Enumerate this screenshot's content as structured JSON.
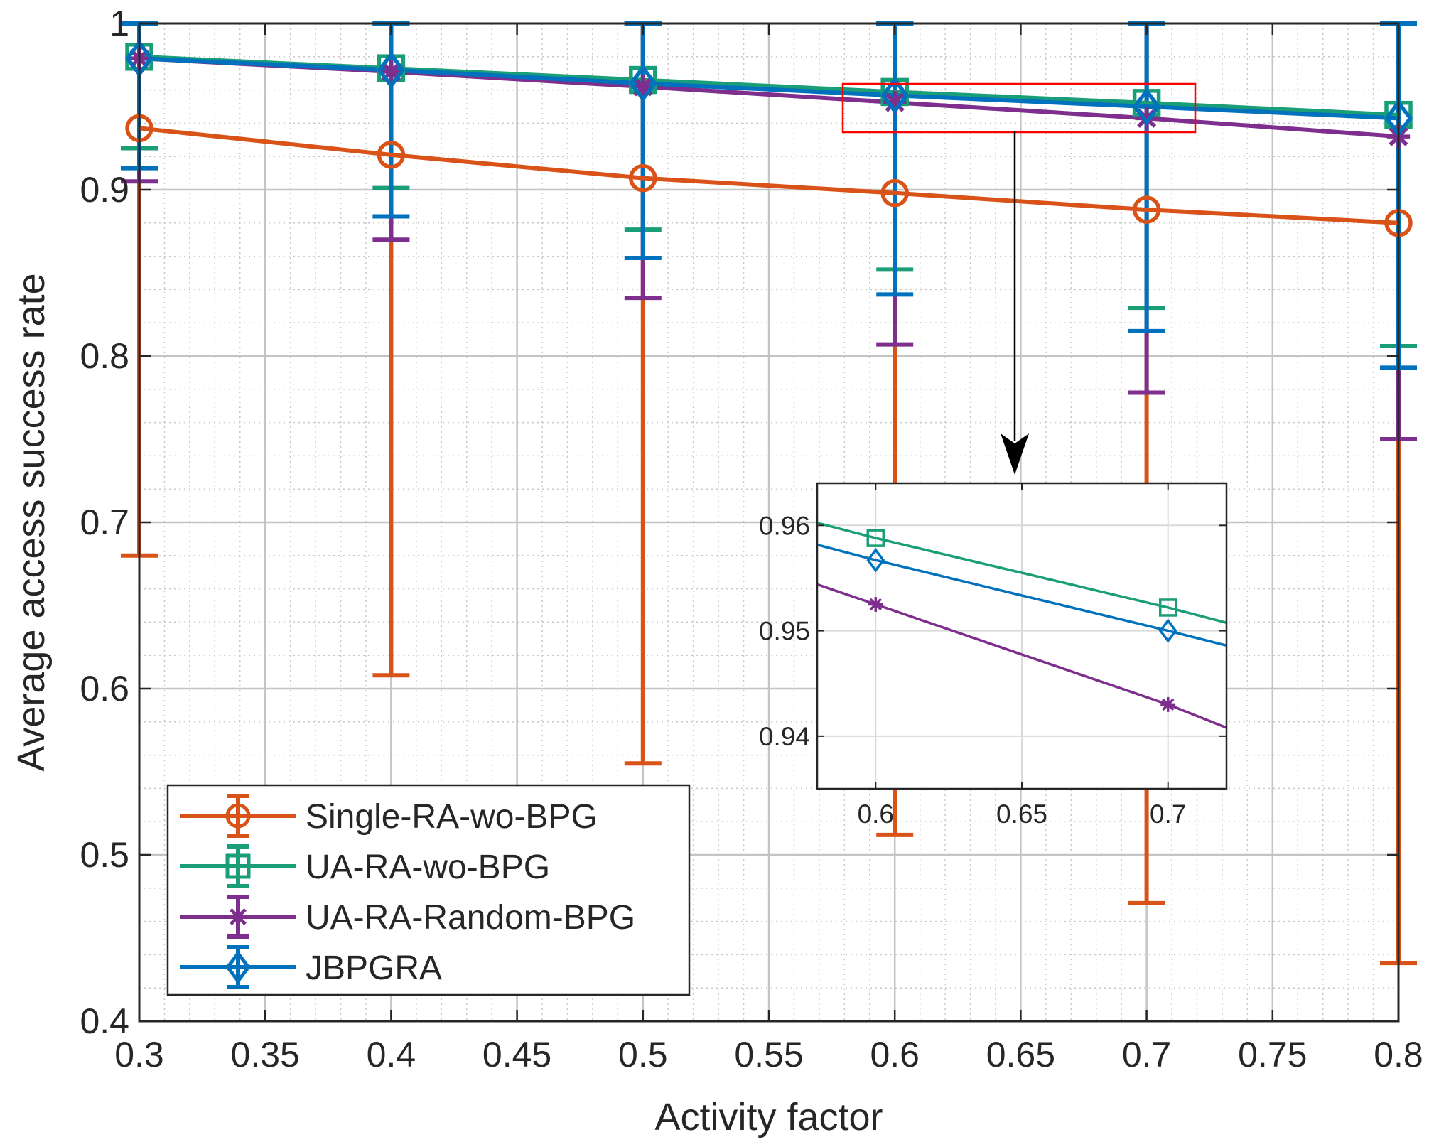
{
  "chart_data": {
    "type": "line",
    "xlabel": "Activity factor",
    "ylabel": "Average access success rate",
    "xlim": [
      0.3,
      0.8
    ],
    "ylim": [
      0.4,
      1.0
    ],
    "xticks": [
      "0.3",
      "0.35",
      "0.4",
      "0.45",
      "0.5",
      "0.55",
      "0.6",
      "0.65",
      "0.7",
      "0.75",
      "0.8"
    ],
    "yticks": [
      "0.4",
      "0.5",
      "0.6",
      "0.7",
      "0.8",
      "0.9",
      "1"
    ],
    "grid": true,
    "minor_grid": true,
    "legend_position": "bottom-left",
    "x": [
      0.3,
      0.4,
      0.5,
      0.6,
      0.7,
      0.8
    ],
    "series": [
      {
        "name": "Single-RA-wo-BPG",
        "color": "#D95319",
        "marker": "circle",
        "values": [
          0.937,
          0.921,
          0.907,
          0.898,
          0.888,
          0.88
        ],
        "err_lower": [
          0.68,
          0.608,
          0.555,
          0.512,
          0.471,
          0.435
        ],
        "err_upper": [
          1.0,
          1.0,
          1.0,
          1.0,
          1.0,
          1.0
        ]
      },
      {
        "name": "UA-RA-wo-BPG",
        "color": "#1A9E77",
        "marker": "square",
        "values": [
          0.98,
          0.973,
          0.966,
          0.9588,
          0.9522,
          0.945
        ],
        "err_lower": [
          0.925,
          0.901,
          0.876,
          0.852,
          0.829,
          0.806
        ],
        "err_upper": [
          1.0,
          1.0,
          1.0,
          1.0,
          1.0,
          1.0
        ]
      },
      {
        "name": "UA-RA-Random-BPG",
        "color": "#7E2F8E",
        "marker": "asterisk",
        "values": [
          0.979,
          0.971,
          0.962,
          0.9525,
          0.943,
          0.932
        ],
        "err_lower": [
          0.905,
          0.87,
          0.835,
          0.807,
          0.778,
          0.75
        ],
        "err_upper": [
          1.0,
          1.0,
          1.0,
          1.0,
          1.0,
          1.0
        ]
      },
      {
        "name": "JBPGRA",
        "color": "#0072BD",
        "marker": "diamond",
        "values": [
          0.979,
          0.972,
          0.964,
          0.9567,
          0.95,
          0.943
        ],
        "err_lower": [
          0.913,
          0.884,
          0.859,
          0.837,
          0.815,
          0.793
        ],
        "err_upper": [
          1.0,
          1.0,
          1.0,
          1.0,
          1.0,
          1.0
        ]
      }
    ],
    "inset": {
      "xlim": [
        0.58,
        0.72
      ],
      "ylim": [
        0.935,
        0.964
      ],
      "xticks": [
        "0.6",
        "0.65",
        "0.7"
      ],
      "yticks": [
        "0.94",
        "0.95",
        "0.96"
      ],
      "zoom_region": {
        "x": [
          0.58,
          0.72
        ],
        "y": [
          0.935,
          0.964
        ]
      }
    }
  }
}
